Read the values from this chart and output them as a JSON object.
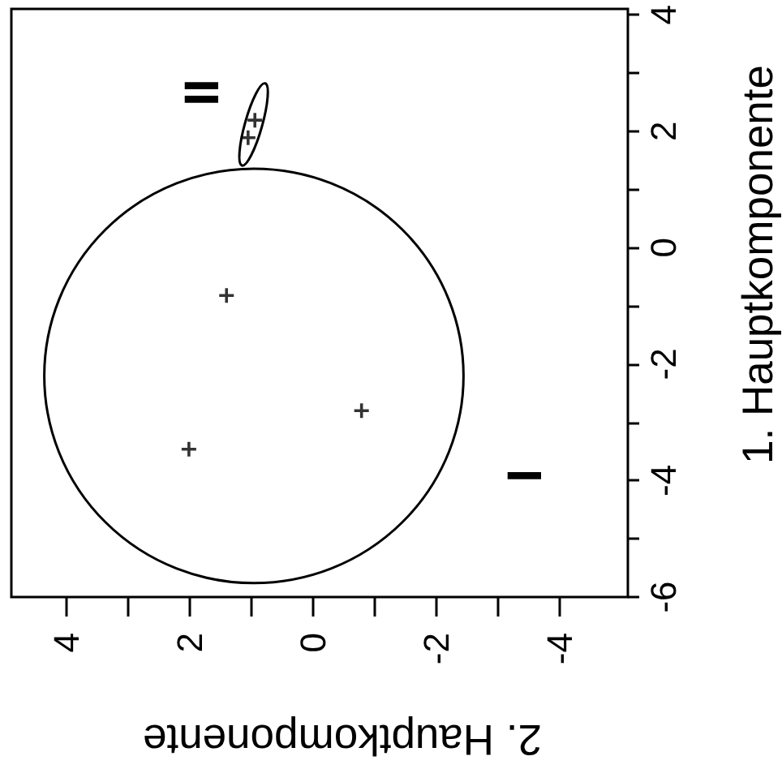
{
  "chart_data": {
    "type": "scatter",
    "xlabel": "2. Hauptkomponente",
    "ylabel": "1. Hauptkomponente",
    "xlim": [
      4.9,
      -5.1
    ],
    "xticks": [
      4,
      {
        "value": 3,
        "label": null
      },
      2,
      {
        "value": 1,
        "label": null
      },
      0,
      {
        "value": -1,
        "label": null
      },
      -2,
      {
        "value": -3,
        "label": null
      },
      -4
    ],
    "ylim": [
      -6,
      4.1
    ],
    "yticks": [
      -6,
      {
        "value": -5,
        "label": null
      },
      -4,
      {
        "value": -3,
        "label": null
      },
      -2,
      {
        "value": -1,
        "label": null
      },
      0,
      {
        "value": 1,
        "label": null
      },
      2,
      {
        "value": 3,
        "label": null
      },
      4
    ],
    "marker": "cross",
    "series": [
      {
        "color": "#000000",
        "x": [
          1.41,
          -0.78,
          2.02,
          0.95,
          1.06
        ],
        "values": [
          -0.82,
          -2.8,
          -3.46,
          2.19,
          1.89
        ]
      }
    ],
    "annotations": [
      "I",
      "II"
    ]
  }
}
